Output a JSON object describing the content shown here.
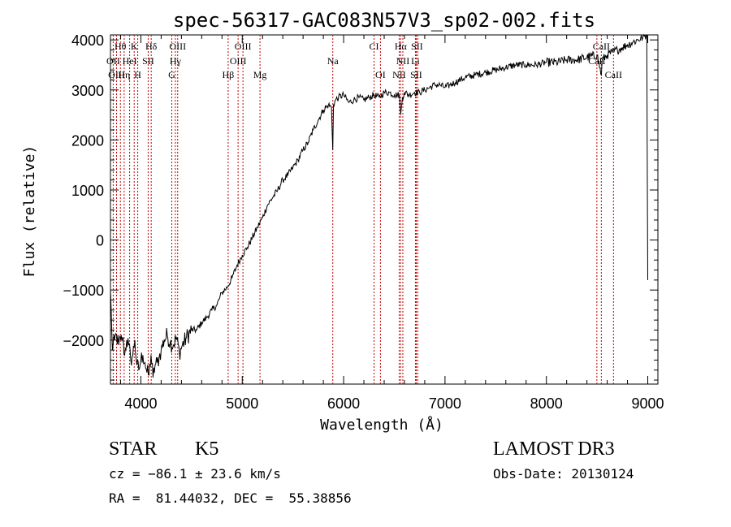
{
  "chart_data": {
    "type": "line",
    "title": "spec-56317-GAC083N57V3_sp02-002.fits",
    "xlabel": "Wavelength (Å)",
    "ylabel": "Flux (relative)",
    "xlim": [
      3700,
      9100
    ],
    "ylim": [
      -2880,
      4100
    ],
    "xticks": [
      4000,
      5000,
      6000,
      7000,
      8000,
      9000
    ],
    "yticks": [
      -2000,
      -1000,
      0,
      1000,
      2000,
      3000,
      4000
    ],
    "grid": false,
    "series": [
      {
        "name": "spectrum",
        "x": [
          3700,
          3720,
          3740,
          3760,
          3780,
          3800,
          3820,
          3840,
          3860,
          3880,
          3900,
          3920,
          3940,
          3960,
          3980,
          4000,
          4020,
          4040,
          4060,
          4080,
          4100,
          4120,
          4140,
          4160,
          4180,
          4200,
          4230,
          4260,
          4290,
          4320,
          4350,
          4380,
          4410,
          4450,
          4500,
          4550,
          4600,
          4650,
          4700,
          4750,
          4800,
          4850,
          4900,
          4950,
          5000,
          5050,
          5100,
          5150,
          5200,
          5250,
          5300,
          5350,
          5400,
          5450,
          5500,
          5550,
          5600,
          5650,
          5700,
          5750,
          5800,
          5850,
          5880,
          5893,
          5900,
          5920,
          5950,
          6000,
          6050,
          6100,
          6150,
          6200,
          6250,
          6300,
          6350,
          6400,
          6450,
          6500,
          6550,
          6563,
          6580,
          6600,
          6650,
          6700,
          6750,
          6800,
          6850,
          6900,
          6950,
          7000,
          7050,
          7100,
          7150,
          7200,
          7300,
          7400,
          7500,
          7600,
          7700,
          7800,
          7900,
          8000,
          8100,
          8200,
          8300,
          8400,
          8500,
          8542,
          8550,
          8600,
          8650,
          8700,
          8750,
          8800,
          8850,
          8900,
          8950,
          8990,
          9000
        ],
        "y": [
          -1000,
          -2200,
          -2000,
          -1900,
          -2100,
          -2000,
          -1950,
          -2300,
          -2000,
          -2100,
          -2400,
          -2300,
          -2000,
          -2500,
          -2600,
          -2400,
          -2300,
          -2450,
          -2650,
          -2700,
          -2300,
          -2750,
          -2500,
          -2450,
          -2350,
          -2200,
          -2000,
          -1900,
          -2050,
          -2100,
          -1950,
          -2250,
          -2100,
          -1950,
          -1800,
          -1800,
          -1650,
          -1550,
          -1400,
          -1300,
          -1050,
          -950,
          -750,
          -500,
          -300,
          -150,
          50,
          250,
          450,
          700,
          850,
          1000,
          1200,
          1300,
          1450,
          1600,
          1800,
          1950,
          2200,
          2400,
          2600,
          2700,
          2650,
          1800,
          2700,
          2800,
          2850,
          2900,
          2750,
          2800,
          2850,
          2800,
          2850,
          2900,
          2850,
          2950,
          2950,
          2900,
          2900,
          2500,
          2850,
          2950,
          2900,
          2950,
          2950,
          3000,
          3050,
          3100,
          3100,
          3050,
          3100,
          3150,
          3200,
          3250,
          3300,
          3350,
          3400,
          3450,
          3500,
          3500,
          3500,
          3550,
          3550,
          3600,
          3600,
          3650,
          3700,
          3300,
          3600,
          3700,
          3750,
          3800,
          3850,
          3900,
          3950,
          4000,
          4050,
          4100,
          -800
        ]
      }
    ],
    "line_groups": [
      {
        "label": "Hθ",
        "row": 1,
        "lines": [
          3798
        ]
      },
      {
        "label": "K",
        "row": 1,
        "lines": [
          3934
        ]
      },
      {
        "label": "Hδ",
        "row": 1,
        "lines": [
          4102
        ]
      },
      {
        "label": "OIII",
        "row": 1,
        "lines": [
          4363
        ]
      },
      {
        "label": "OIII",
        "row": 1,
        "lines": [
          5007
        ]
      },
      {
        "label": "CI",
        "row": 1,
        "lines": [
          6300
        ]
      },
      {
        "label": "Hα",
        "row": 1,
        "lines": [
          6563
        ]
      },
      {
        "label": "SII",
        "row": 1,
        "lines": [
          6716,
          6731
        ]
      },
      {
        "label": "CaII",
        "row": 1,
        "lines": [
          8542
        ]
      },
      {
        "label": "OII",
        "row": 2,
        "lines": [
          3727
        ]
      },
      {
        "label": "HeI",
        "row": 2,
        "lines": [
          3889
        ]
      },
      {
        "label": "SII",
        "row": 2,
        "lines": [
          4072
        ]
      },
      {
        "label": "Hγ",
        "row": 2,
        "lines": [
          4340
        ]
      },
      {
        "label": "OIII",
        "row": 2,
        "lines": [
          4959
        ]
      },
      {
        "label": "Na",
        "row": 2,
        "lines": [
          5893
        ]
      },
      {
        "label": "NII",
        "row": 2,
        "lines": [
          6584
        ]
      },
      {
        "label": "Li",
        "row": 2,
        "lines": [
          6708
        ]
      },
      {
        "label": "CaII",
        "row": 2,
        "lines": [
          8498
        ]
      },
      {
        "label": "OIII",
        "row": 3,
        "lines": [
          3760
        ]
      },
      {
        "label": "Hη",
        "row": 3,
        "lines": [
          3835
        ]
      },
      {
        "label": "H",
        "row": 3,
        "lines": [
          3969
        ]
      },
      {
        "label": "G",
        "row": 3,
        "lines": [
          4305
        ]
      },
      {
        "label": "Hβ",
        "row": 3,
        "lines": [
          4861
        ]
      },
      {
        "label": "Mg",
        "row": 3,
        "lines": [
          5175
        ]
      },
      {
        "label": "OI",
        "row": 3,
        "lines": [
          6363
        ]
      },
      {
        "label": "NII",
        "row": 3,
        "lines": [
          6548
        ]
      },
      {
        "label": "SII",
        "row": 3,
        "lines": [
          6716
        ]
      },
      {
        "label": "CaII",
        "row": 3,
        "lines": [
          8662
        ]
      }
    ]
  },
  "info": {
    "class_label": "STAR",
    "subclass": "K5",
    "survey": "LAMOST DR3",
    "cz": "cz = −86.1 ± 23.6 km/s",
    "obs_date": "Obs-Date: 20130124",
    "coords": "RA =  81.44032, DEC =  55.38856"
  },
  "colors": {
    "line_marker": "#c00000",
    "spectrum": "#000000",
    "axes": "#000000"
  }
}
